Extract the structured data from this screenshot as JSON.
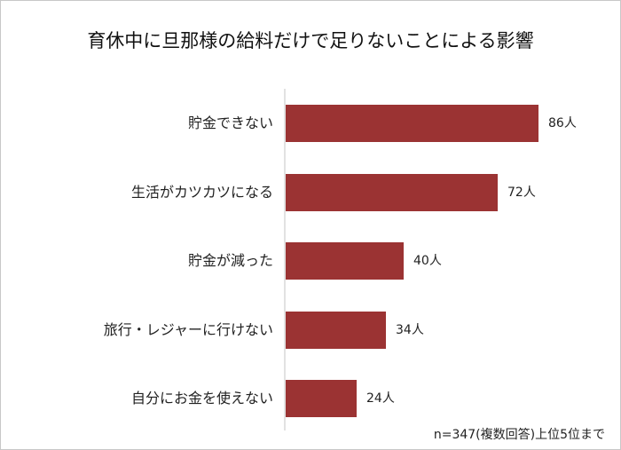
{
  "title": "育休中に旦那様の給料だけで足りないことによる影響",
  "note": "n=347(複数回答)上位5位まで",
  "bar_color": "#9b3333",
  "bars": [
    {
      "label": "貯金できない",
      "value": 86,
      "value_label": "86人"
    },
    {
      "label": "生活がカツカツになる",
      "value": 72,
      "value_label": "72人"
    },
    {
      "label": "貯金が減った",
      "value": 40,
      "value_label": "40人"
    },
    {
      "label": "旅行・レジャーに行けない",
      "value": 34,
      "value_label": "34人"
    },
    {
      "label": "自分にお金を使えない",
      "value": 24,
      "value_label": "24人"
    }
  ],
  "chart_data": {
    "type": "bar",
    "orientation": "horizontal",
    "title": "育休中に旦那様の給料だけで足りないことによる影響",
    "categories": [
      "貯金できない",
      "生活がカツカツになる",
      "貯金が減った",
      "旅行・レジャーに行けない",
      "自分にお金を使えない"
    ],
    "values": [
      86,
      72,
      40,
      34,
      24
    ],
    "unit": "人",
    "xlabel": "",
    "ylabel": "",
    "grid": false,
    "legend": null,
    "annotation": "n=347(複数回答)上位5位まで"
  }
}
